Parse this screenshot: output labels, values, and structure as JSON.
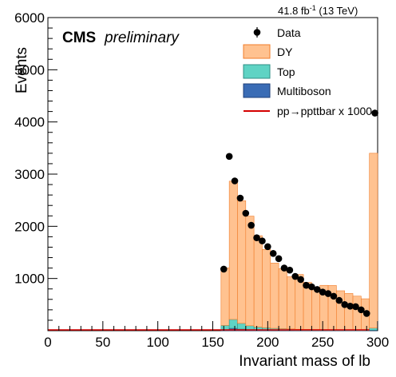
{
  "chart_data": {
    "type": "bar",
    "title": "",
    "header": {
      "cms": "CMS",
      "preliminary": "preliminary",
      "lumi_value": "41.8 fb",
      "lumi_exp": "-1",
      "lumi_energy": " (13 TeV)"
    },
    "xlabel": "Invariant mass of lb",
    "ylabel": "Events",
    "xlim": [
      0,
      300
    ],
    "ylim": [
      0,
      6000
    ],
    "xticks": [
      "0",
      "50",
      "100",
      "150",
      "200",
      "250",
      "300"
    ],
    "yticks": [
      "1000",
      "2000",
      "3000",
      "4000",
      "5000",
      "6000"
    ],
    "bin_width": 7.5,
    "bin_low_edges": [
      157.5,
      165,
      172.5,
      180,
      187.5,
      195,
      202.5,
      210,
      217.5,
      225,
      232.5,
      240,
      247.5,
      255,
      262.5,
      270,
      277.5,
      285,
      292.5
    ],
    "overflow_bin": [
      292.5,
      300
    ],
    "legend_position": "top-right",
    "series": [
      {
        "name": "DY",
        "kind": "stacked",
        "color": "#ffc290",
        "edge": "#f07c2a",
        "values": [
          1100,
          2650,
          2350,
          2100,
          1750,
          1500,
          1250,
          1150,
          1000,
          1050,
          900,
          800,
          850,
          850,
          750,
          700,
          650,
          600,
          3350
        ]
      },
      {
        "name": "Top",
        "kind": "stacked",
        "color": "#5fd3c4",
        "edge": "#2f8f86",
        "values": [
          90,
          170,
          110,
          75,
          55,
          45,
          35,
          30,
          25,
          20,
          18,
          16,
          14,
          12,
          11,
          10,
          9,
          8,
          40
        ]
      },
      {
        "name": "Multiboson",
        "kind": "stacked",
        "color": "#3a6cb5",
        "edge": "#1f3f7a",
        "values": [
          12,
          45,
          30,
          20,
          15,
          12,
          10,
          9,
          8,
          7,
          6,
          5,
          5,
          4,
          4,
          3,
          3,
          3,
          10
        ]
      },
      {
        "name": "Data",
        "kind": "points",
        "color": "#000000",
        "x": [
          160,
          165,
          170,
          175,
          180,
          185,
          190,
          195,
          200,
          205,
          210,
          215,
          220,
          225,
          230,
          235,
          240,
          245,
          250,
          255,
          260,
          265,
          270,
          275,
          280,
          285,
          290,
          297.5
        ],
        "values": [
          1180,
          3340,
          2870,
          2540,
          2250,
          2020,
          1780,
          1720,
          1610,
          1480,
          1380,
          1200,
          1160,
          1040,
          980,
          870,
          840,
          790,
          740,
          710,
          660,
          580,
          500,
          470,
          460,
          400,
          330,
          4170
        ]
      },
      {
        "name": "pp→ppttbar x 1000",
        "kind": "line",
        "color": "#d40000",
        "values": [
          0
        ]
      }
    ]
  }
}
